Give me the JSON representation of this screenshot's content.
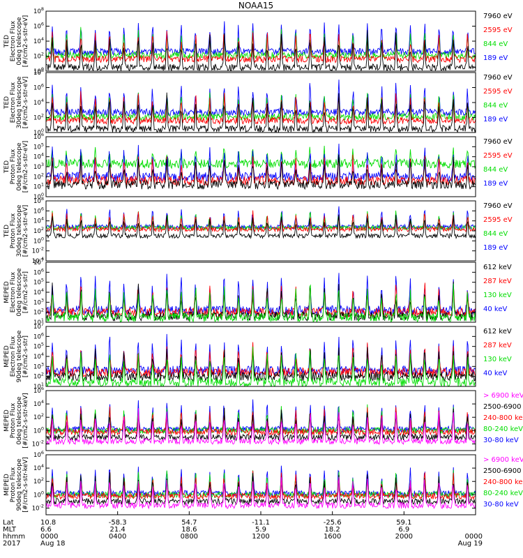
{
  "chart_data": {
    "type": "line",
    "title": "NOAA15",
    "panels": [
      {
        "ylabel": [
          "TED",
          "Electron Flux",
          "0deg telescope",
          "[#/cm2-s-str-eV]"
        ],
        "ylog": [
          0,
          8
        ],
        "ticks": [
          "10^0",
          "10^2",
          "10^4",
          "10^6",
          "10^8"
        ],
        "legend": [
          {
            "name": "7960 eV",
            "color": "#000000"
          },
          {
            "name": "2595 eV",
            "color": "#ff0000"
          },
          {
            "name": "844 eV",
            "color": "#00dd00"
          },
          {
            "name": "189 eV",
            "color": "#0000ff"
          }
        ],
        "levels": [
          0.5,
          1.6,
          2.1,
          2.6
        ]
      },
      {
        "ylabel": [
          "TED",
          "Electron Flux",
          "30deg telescope",
          "[#/cm2-s-str-eV]"
        ],
        "ylog": [
          0,
          8
        ],
        "ticks": [
          "10^0",
          "10^2",
          "10^4",
          "10^6",
          "10^8"
        ],
        "legend": [
          {
            "name": "7960 eV",
            "color": "#000000"
          },
          {
            "name": "2595 eV",
            "color": "#ff0000"
          },
          {
            "name": "844 eV",
            "color": "#00dd00"
          },
          {
            "name": "189 eV",
            "color": "#0000ff"
          }
        ],
        "levels": [
          0.5,
          1.6,
          2.1,
          2.7
        ]
      },
      {
        "ylabel": [
          "TED",
          "Proton Flux",
          "0deg telescope",
          "[#/cm2-s-str-eV]"
        ],
        "ylog": [
          0,
          6
        ],
        "ticks": [
          "10^0",
          "10^1",
          "10^2",
          "10^3",
          "10^4",
          "10^5",
          "10^6"
        ],
        "legend": [
          {
            "name": "7960 eV",
            "color": "#000000"
          },
          {
            "name": "2595 eV",
            "color": "#ff0000"
          },
          {
            "name": "844 eV",
            "color": "#00dd00"
          },
          {
            "name": "189 eV",
            "color": "#0000ff"
          }
        ],
        "levels": [
          1.2,
          1.6,
          3.3,
          2.0
        ]
      },
      {
        "ylabel": [
          "TED",
          "Proton Flux",
          "30deg telescope",
          "[#/cm2-s-str-eV]"
        ],
        "ylog": [
          -4,
          8
        ],
        "ticks": [
          "10^-4",
          "10^-2",
          "10^0",
          "10^2",
          "10^4",
          "10^6",
          "10^8"
        ],
        "legend": [
          {
            "name": "7960 eV",
            "color": "#000000"
          },
          {
            "name": "2595 eV",
            "color": "#ff0000"
          },
          {
            "name": "844 eV",
            "color": "#00dd00"
          },
          {
            "name": "189 eV",
            "color": "#0000ff"
          }
        ],
        "levels": [
          1.0,
          2.3,
          2.6,
          2.8
        ]
      },
      {
        "ylabel": [
          "MEPED",
          "Electron Flux",
          "0deg telescope",
          "[#/cm2-s-str]"
        ],
        "ylog": [
          1,
          7
        ],
        "ticks": [
          "10^1",
          "10^2",
          "10^3",
          "10^4",
          "10^5",
          "10^6",
          "10^7"
        ],
        "legend": [
          {
            "name": "612 keV",
            "color": "#000000"
          },
          {
            "name": "287 keV",
            "color": "#ff0000"
          },
          {
            "name": "130 keV",
            "color": "#00dd00"
          },
          {
            "name": "40 keV",
            "color": "#0000ff"
          }
        ],
        "levels": [
          1.6,
          2.0,
          1.5,
          2.2
        ]
      },
      {
        "ylabel": [
          "MEPED",
          "Electron Flux",
          "90deg telescope",
          "[#/cm2-s-str]"
        ],
        "ylog": [
          1,
          7
        ],
        "ticks": [
          "10^1",
          "10^2",
          "10^3",
          "10^4",
          "10^5",
          "10^6",
          "10^7"
        ],
        "legend": [
          {
            "name": "612 keV",
            "color": "#000000"
          },
          {
            "name": "287 keV",
            "color": "#ff0000"
          },
          {
            "name": "130 keV",
            "color": "#00dd00"
          },
          {
            "name": "40 keV",
            "color": "#0000ff"
          }
        ],
        "levels": [
          2.0,
          2.4,
          1.4,
          2.6
        ]
      },
      {
        "ylabel": [
          "MEPED",
          "Proton Flux",
          "0deg telescope",
          "[#/cm2-s-str-keV]"
        ],
        "ylog": [
          -3,
          6
        ],
        "ticks": [
          "10^-2",
          "10^0",
          "10^2",
          "10^4",
          "10^6"
        ],
        "legend": [
          {
            "name": "> 6900 keV",
            "color": "#ff00ff"
          },
          {
            "name": "2500-6900",
            "color": "#000000"
          },
          {
            "name": "240-800 ke",
            "color": "#ff0000"
          },
          {
            "name": "80-240 keV",
            "color": "#00dd00"
          },
          {
            "name": "30-80 keV",
            "color": "#0000ff"
          }
        ],
        "levels": [
          -1.6,
          -1.0,
          -0.2,
          0.0,
          0.2
        ]
      },
      {
        "ylabel": [
          "MEPED",
          "Proton Flux",
          "90deg telescope",
          "[#/cm2-s-str-keV]"
        ],
        "ylog": [
          -3,
          6
        ],
        "ticks": [
          "10^-2",
          "10^0",
          "10^2",
          "10^4",
          "10^6"
        ],
        "legend": [
          {
            "name": "> 6900 keV",
            "color": "#ff00ff"
          },
          {
            "name": "2500-6900",
            "color": "#000000"
          },
          {
            "name": "240-800 ke",
            "color": "#ff0000"
          },
          {
            "name": "80-240 keV",
            "color": "#00dd00"
          },
          {
            "name": "30-80 keV",
            "color": "#0000ff"
          }
        ],
        "levels": [
          -1.6,
          -1.0,
          -0.2,
          0.0,
          0.2
        ]
      }
    ],
    "x_axis": {
      "row_labels": [
        "Lat",
        "MLT",
        "hhmm",
        "2017"
      ],
      "ticks": [
        {
          "lat": "10.8",
          "mlt": "6.6",
          "hhmm": "0000",
          "date": "Aug 18"
        },
        {
          "lat": "-58.3",
          "mlt": "21.4",
          "hhmm": "0400",
          "date": ""
        },
        {
          "lat": "54.7",
          "mlt": "18.6",
          "hhmm": "0800",
          "date": ""
        },
        {
          "lat": "-11.1",
          "mlt": "5.9",
          "hhmm": "1200",
          "date": ""
        },
        {
          "lat": "-25.6",
          "mlt": "18.2",
          "hhmm": "1600",
          "date": ""
        },
        {
          "lat": "59.1",
          "mlt": "6.9",
          "hhmm": "2000",
          "date": ""
        },
        {
          "lat": "",
          "mlt": "",
          "hhmm": "0000",
          "date": "Aug 19"
        }
      ]
    },
    "orbit_period_hours": 1.6
  }
}
